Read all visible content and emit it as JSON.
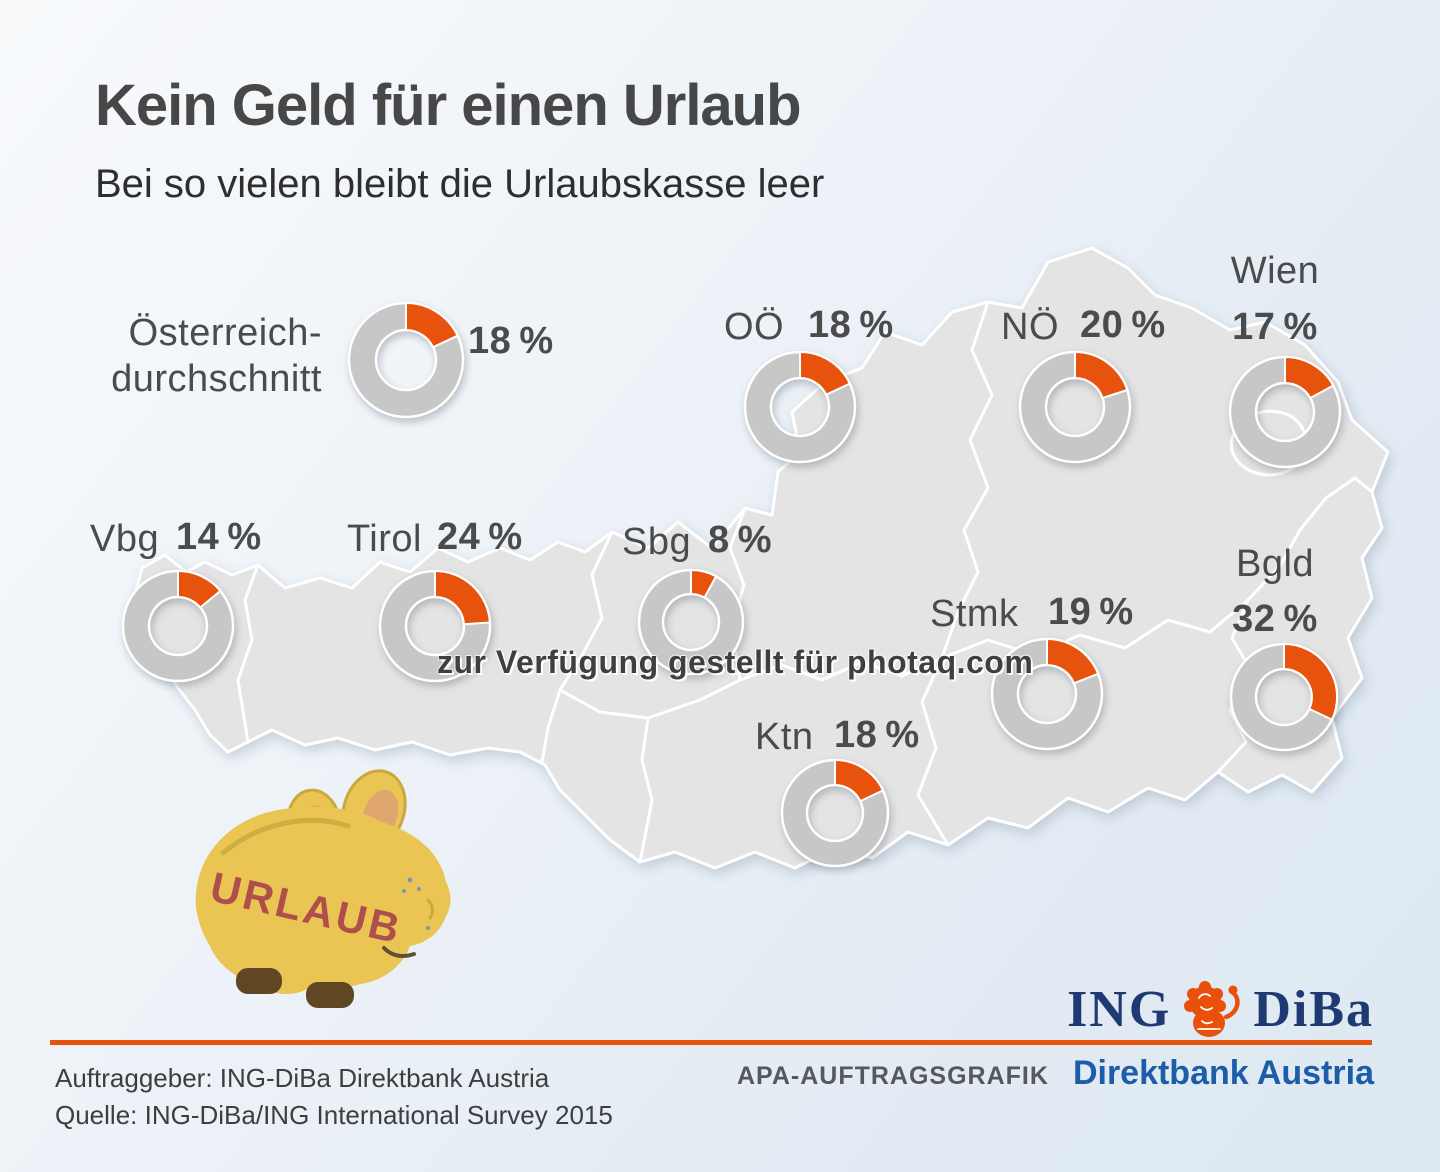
{
  "header": {
    "title": "Kein Geld für einen Urlaub",
    "subtitle": "Bei so vielen bleibt die Urlaubskasse leer"
  },
  "watermark": "zur Verfügung gestellt für photaq.com",
  "chart_data": {
    "type": "pie",
    "subtype": "donut-charts-on-austria-map",
    "title": "Kein Geld für einen Urlaub",
    "subtitle": "Bei so vielen bleibt die Urlaubskasse leer",
    "unit": "%",
    "legend_position": "none",
    "regions": [
      {
        "key": "avg",
        "label": "Österreich-durchschnitt",
        "value": 18
      },
      {
        "key": "ooe",
        "label": "OÖ",
        "value": 18
      },
      {
        "key": "noe",
        "label": "NÖ",
        "value": 20
      },
      {
        "key": "wien",
        "label": "Wien",
        "value": 17
      },
      {
        "key": "vbg",
        "label": "Vbg",
        "value": 14
      },
      {
        "key": "tirol",
        "label": "Tirol",
        "value": 24
      },
      {
        "key": "sbg",
        "label": "Sbg",
        "value": 8
      },
      {
        "key": "stmk",
        "label": "Stmk",
        "value": 19
      },
      {
        "key": "bgld",
        "label": "Bgld",
        "value": 32
      },
      {
        "key": "ktn",
        "label": "Ktn",
        "value": 18
      }
    ]
  },
  "piggy_bank": {
    "label": "URLAUB",
    "body_color": "#ebc553",
    "ear_inner_color": "#dfa670",
    "outline_color": "#c9a83f",
    "feet_color": "#5f4724",
    "text_color": "#af4f4c"
  },
  "footer": {
    "client_line": "Auftraggeber: ING-DiBa Direktbank Austria",
    "source_line": "Quelle: ING-DiBa/ING International Survey 2015",
    "apa_label": "APA-AUFTRAGSGRAFIK",
    "brand_sub": "Direktbank Austria",
    "logo_ing": "ING",
    "logo_diba": "DiBa"
  },
  "colors": {
    "accent_orange": "#e7520d",
    "donut_gray": "#c7c7c7",
    "map_gray": "#e4e4e4",
    "ing_navy": "#1f3a73",
    "brand_blue": "#1c5ca8",
    "apa_gray": "#58585a",
    "text_gray": "#4b4b4b",
    "title_gray": "#474747",
    "footer_gray": "#3e3e3e",
    "lion_orange": "#e8500c"
  }
}
